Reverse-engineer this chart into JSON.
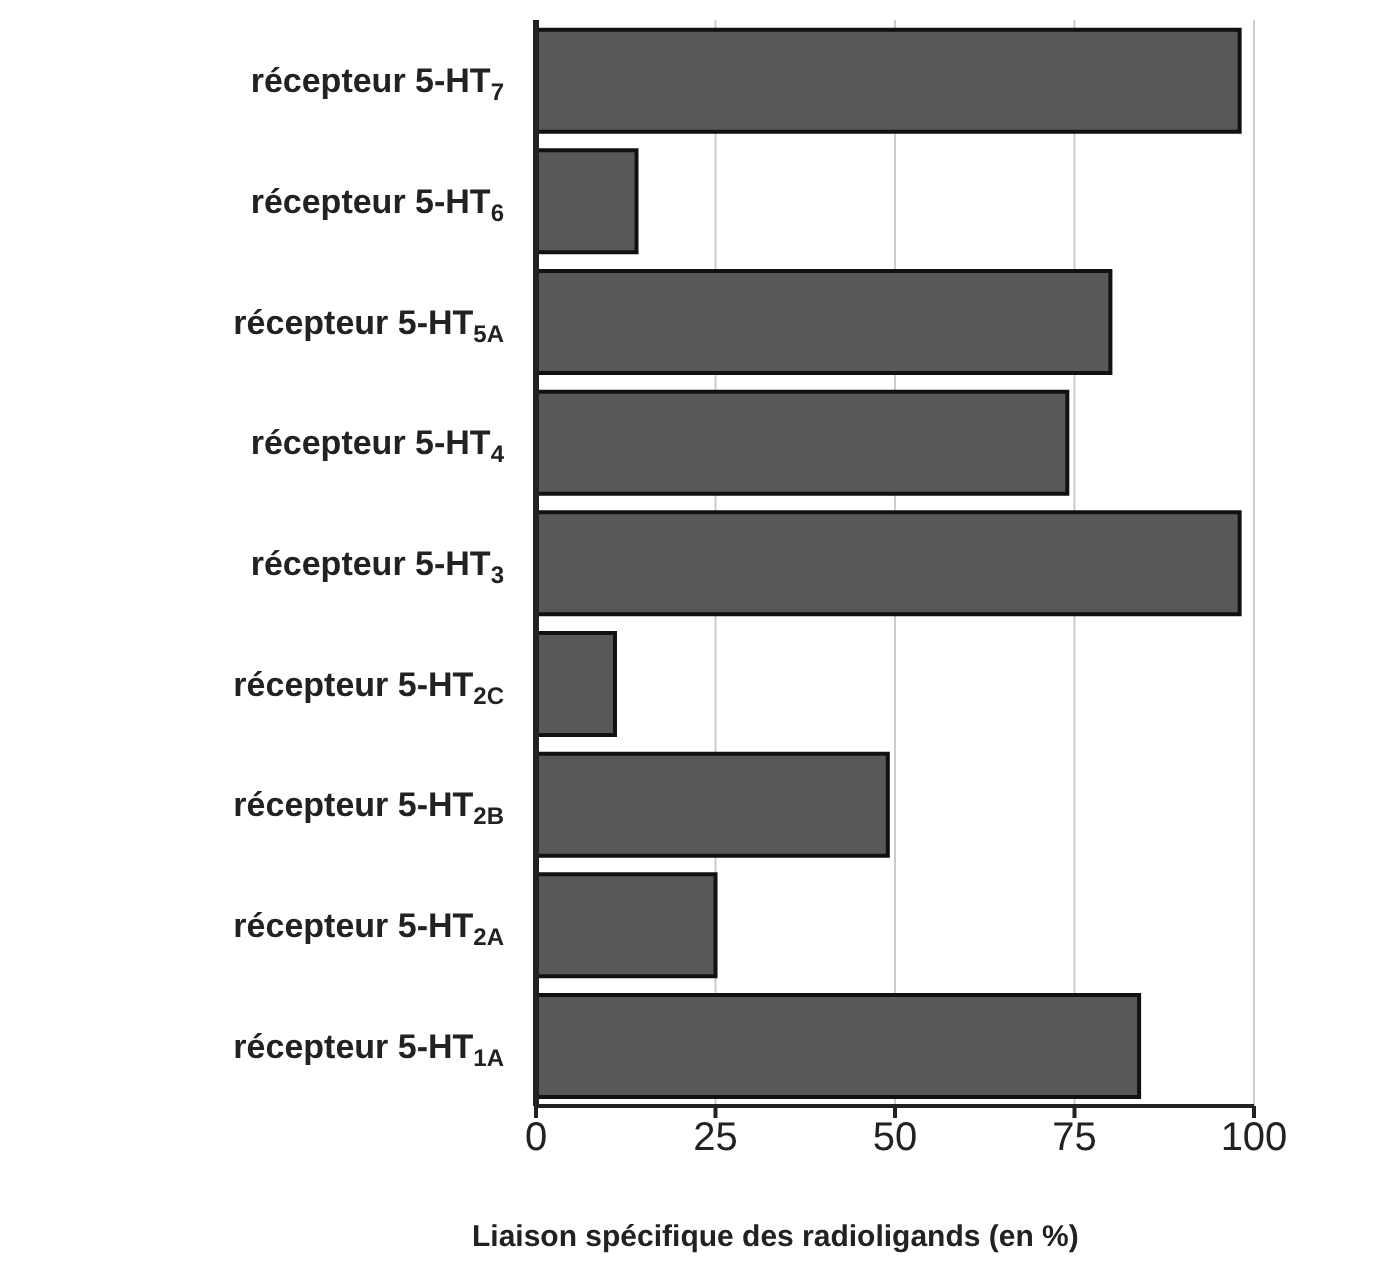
{
  "chart_data": {
    "type": "bar",
    "orientation": "horizontal",
    "xlabel": "Liaison spécifique des radioligands (en %)",
    "categories": [
      "récepteur 5-HT$_{7}$",
      "récepteur 5-HT$_{6}$",
      "récepteur 5-HT$_{5A}$",
      "récepteur 5-HT$_{4}$",
      "récepteur 5-HT$_{3}$",
      "récepteur 5-HT$_{2C}$",
      "récepteur 5-HT$_{2B}$",
      "récepteur 5-HT$_{2A}$",
      "récepteur 5-HT$_{1A}$"
    ],
    "values": [
      98,
      14,
      80,
      74,
      98,
      11,
      49,
      25,
      84
    ],
    "color": "#585858",
    "xlim": [
      0,
      100
    ],
    "xticks": [
      0,
      25,
      50,
      75,
      100
    ],
    "grid": "x"
  }
}
